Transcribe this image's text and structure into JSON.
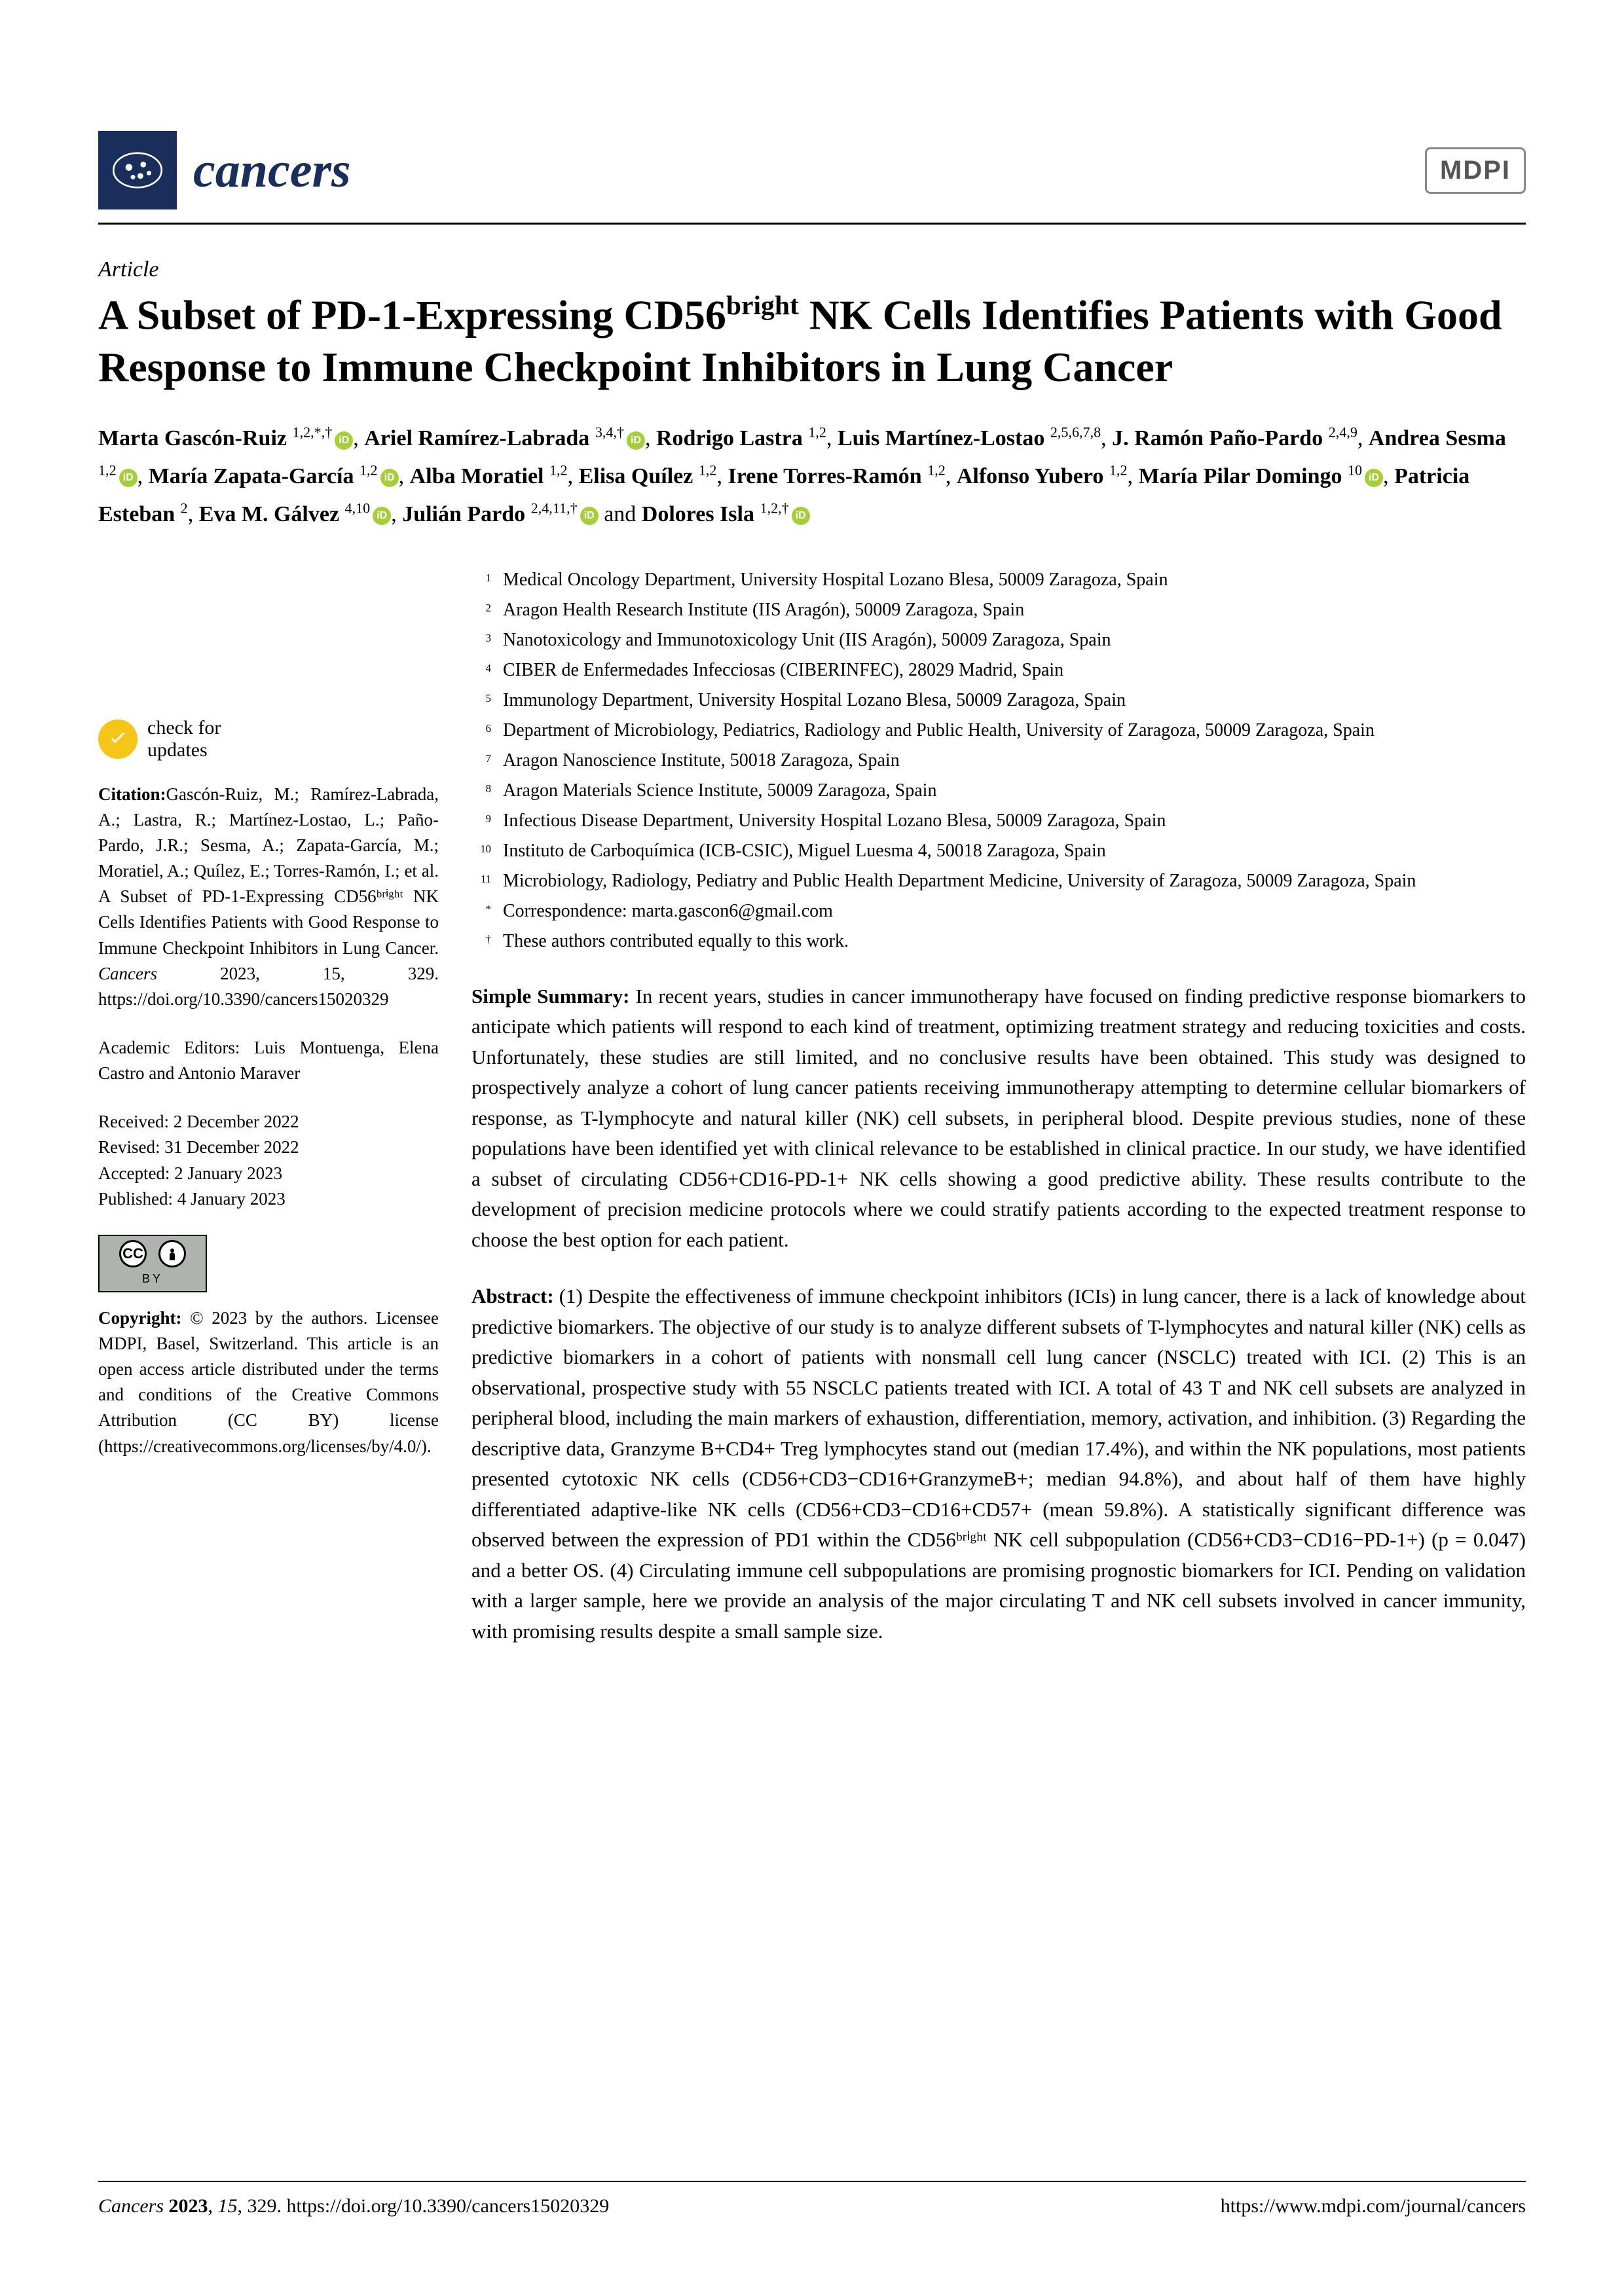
{
  "journal": {
    "name": "cancers",
    "publisher": "MDPI"
  },
  "article_type": "Article",
  "title_parts": {
    "pre": "A Subset of PD-1-Expressing CD56",
    "sup": "bright",
    "post": " NK Cells Identifies Patients with Good Response to Immune Checkpoint Inhibitors in Lung Cancer"
  },
  "authors": [
    {
      "name": "Marta Gascón-Ruiz",
      "aff": "1,2,*,†",
      "orcid": true
    },
    {
      "name": "Ariel Ramírez-Labrada",
      "aff": "3,4,†",
      "orcid": true
    },
    {
      "name": "Rodrigo Lastra",
      "aff": "1,2",
      "orcid": false
    },
    {
      "name": "Luis Martínez-Lostao",
      "aff": "2,5,6,7,8",
      "orcid": false
    },
    {
      "name": "J. Ramón Paño-Pardo",
      "aff": "2,4,9",
      "orcid": false
    },
    {
      "name": "Andrea Sesma",
      "aff": "1,2",
      "orcid": true
    },
    {
      "name": "María Zapata-García",
      "aff": "1,2",
      "orcid": true
    },
    {
      "name": "Alba Moratiel",
      "aff": "1,2",
      "orcid": false
    },
    {
      "name": "Elisa Quílez",
      "aff": "1,2",
      "orcid": false
    },
    {
      "name": "Irene Torres-Ramón",
      "aff": "1,2",
      "orcid": false
    },
    {
      "name": "Alfonso Yubero",
      "aff": "1,2",
      "orcid": false
    },
    {
      "name": "María Pilar Domingo",
      "aff": "10",
      "orcid": true
    },
    {
      "name": "Patricia Esteban",
      "aff": "2",
      "orcid": false
    },
    {
      "name": "Eva M. Gálvez",
      "aff": "4,10",
      "orcid": true
    },
    {
      "name": "Julián Pardo",
      "aff": "2,4,11,†",
      "orcid": true
    },
    {
      "name": "Dolores Isla",
      "aff": "1,2,†",
      "orcid": true
    }
  ],
  "affiliations": [
    {
      "n": "1",
      "t": "Medical Oncology Department, University Hospital Lozano Blesa, 50009 Zaragoza, Spain"
    },
    {
      "n": "2",
      "t": "Aragon Health Research Institute (IIS Aragón), 50009 Zaragoza, Spain"
    },
    {
      "n": "3",
      "t": "Nanotoxicology and Immunotoxicology Unit (IIS Aragón), 50009 Zaragoza, Spain"
    },
    {
      "n": "4",
      "t": "CIBER de Enfermedades Infecciosas (CIBERINFEC), 28029 Madrid, Spain"
    },
    {
      "n": "5",
      "t": "Immunology Department, University Hospital Lozano Blesa, 50009 Zaragoza, Spain"
    },
    {
      "n": "6",
      "t": "Department of Microbiology, Pediatrics, Radiology and Public Health, University of Zaragoza, 50009 Zaragoza, Spain"
    },
    {
      "n": "7",
      "t": "Aragon Nanoscience Institute, 50018 Zaragoza, Spain"
    },
    {
      "n": "8",
      "t": "Aragon Materials Science Institute, 50009 Zaragoza, Spain"
    },
    {
      "n": "9",
      "t": "Infectious Disease Department, University Hospital Lozano Blesa, 50009 Zaragoza, Spain"
    },
    {
      "n": "10",
      "t": "Instituto de Carboquímica (ICB-CSIC), Miguel Luesma 4, 50018 Zaragoza, Spain"
    },
    {
      "n": "11",
      "t": "Microbiology, Radiology, Pediatry and Public Health Department Medicine, University of Zaragoza, 50009 Zaragoza, Spain"
    },
    {
      "n": "*",
      "t": "Correspondence: marta.gascon6@gmail.com"
    },
    {
      "n": "†",
      "t": "These authors contributed equally to this work."
    }
  ],
  "check_updates": "check for\nupdates",
  "citation_label": "Citation:",
  "citation_text": "Gascón-Ruiz, M.; Ramírez-Labrada, A.; Lastra, R.; Martínez-Lostao, L.; Paño-Pardo, J.R.; Sesma, A.; Zapata-García, M.; Moratiel, A.; Quílez, E.; Torres-Ramón, I.; et al. A Subset of PD-1-Expressing CD56ᵇʳⁱᵍʰᵗ NK Cells Identifies Patients with Good Response to Immune Checkpoint Inhibitors in Lung Cancer. ",
  "citation_journal": "Cancers",
  "citation_tail": " 2023, 15, 329. https://doi.org/10.3390/cancers15020329",
  "editors_label": "Academic Editors: ",
  "editors": "Luis Montuenga, Elena Castro and Antonio Maraver",
  "dates": {
    "received": "Received: 2 December 2022",
    "revised": "Revised: 31 December 2022",
    "accepted": "Accepted: 2 January 2023",
    "published": "Published: 4 January 2023"
  },
  "copyright_label": "Copyright:",
  "copyright_text": " © 2023 by the authors. Licensee MDPI, Basel, Switzerland. This article is an open access article distributed under the terms and conditions of the Creative Commons Attribution (CC BY) license (https://creativecommons.org/licenses/by/4.0/).",
  "summary_label": "Simple Summary:",
  "summary_text": " In recent years, studies in cancer immunotherapy have focused on finding predictive response biomarkers to anticipate which patients will respond to each kind of treatment, optimizing treatment strategy and reducing toxicities and costs. Unfortunately, these studies are still limited, and no conclusive results have been obtained. This study was designed to prospectively analyze a cohort of lung cancer patients receiving immunotherapy attempting to determine cellular biomarkers of response, as T-lymphocyte and natural killer (NK) cell subsets, in peripheral blood. Despite previous studies, none of these populations have been identified yet with clinical relevance to be established in clinical practice. In our study, we have identified a subset of circulating CD56+CD16-PD-1+ NK cells showing a good predictive ability. These results contribute to the development of precision medicine protocols where we could stratify patients according to the expected treatment response to choose the best option for each patient.",
  "abstract_label": "Abstract:",
  "abstract_text": " (1) Despite the effectiveness of immune checkpoint inhibitors (ICIs) in lung cancer, there is a lack of knowledge about predictive biomarkers. The objective of our study is to analyze different subsets of T-lymphocytes and natural killer (NK) cells as predictive biomarkers in a cohort of patients with nonsmall cell lung cancer (NSCLC) treated with ICI. (2) This is an observational, prospective study with 55 NSCLC patients treated with ICI. A total of 43 T and NK cell subsets are analyzed in peripheral blood, including the main markers of exhaustion, differentiation, memory, activation, and inhibition. (3) Regarding the descriptive data, Granzyme B+CD4+ Treg lymphocytes stand out (median 17.4%), and within the NK populations, most patients presented cytotoxic NK cells (CD56+CD3−CD16+GranzymeB+; median 94.8%), and about half of them have highly differentiated adaptive-like NK cells (CD56+CD3−CD16+CD57+ (mean 59.8%). A statistically significant difference was observed between the expression of PD1 within the CD56ᵇʳⁱᵍʰᵗ NK cell subpopulation (CD56+CD3−CD16−PD-1+) (p = 0.047) and a better OS. (4) Circulating immune cell subpopulations are promising prognostic biomarkers for ICI. Pending on validation with a larger sample, here we provide an analysis of the major circulating T and NK cell subsets involved in cancer immunity, with promising results despite a small sample size.",
  "footer": {
    "left": "Cancers 2023, 15, 329. https://doi.org/10.3390/cancers15020329",
    "right": "https://www.mdpi.com/journal/cancers"
  },
  "colors": {
    "brand": "#1a2e5c",
    "orcid": "#a6ce39",
    "check": "#f5c518",
    "text": "#000000",
    "bg": "#ffffff"
  },
  "typography": {
    "title_pt": 64,
    "body_pt": 31,
    "sidebar_pt": 27,
    "affil_pt": 28,
    "family": "Palatino Linotype"
  }
}
